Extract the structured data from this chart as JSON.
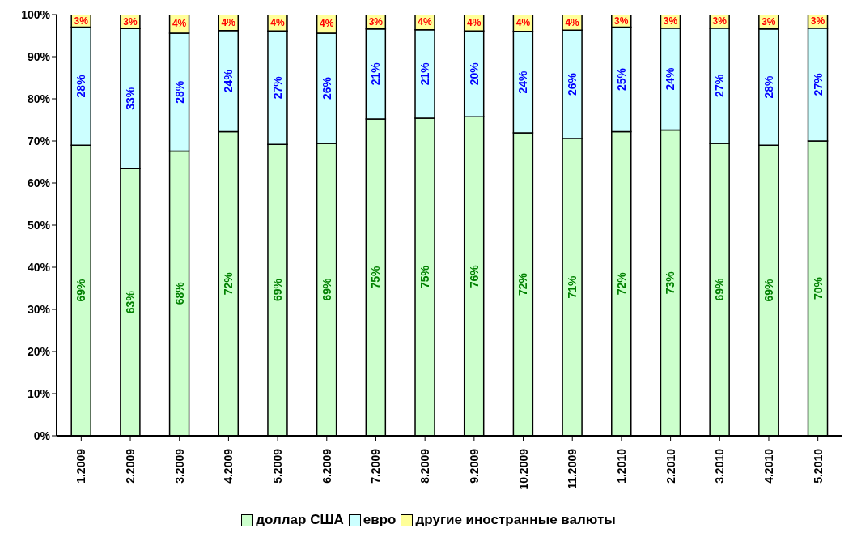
{
  "chart_data": {
    "type": "bar",
    "stacked": true,
    "categories": [
      "1.2009",
      "2.2009",
      "3.2009",
      "4.2009",
      "5.2009",
      "6.2009",
      "7.2009",
      "8.2009",
      "9.2009",
      "10.2009",
      "11.2009",
      "1.2010",
      "2.2010",
      "3.2010",
      "4.2010",
      "5.2010"
    ],
    "series": [
      {
        "name": "доллар США",
        "color": "#ccffcc",
        "values": [
          69.0,
          63.4,
          67.6,
          72.2,
          69.2,
          69.4,
          75.2,
          75.4,
          75.7,
          71.9,
          70.6,
          72.2,
          72.6,
          69.4,
          69.0,
          70.0
        ],
        "value_labels": [
          "69%",
          "63%",
          "68%",
          "72%",
          "69%",
          "69%",
          "75%",
          "75%",
          "76%",
          "72%",
          "71%",
          "72%",
          "73%",
          "69%",
          "69%",
          "70%"
        ]
      },
      {
        "name": "евро",
        "color": "#ccffff",
        "values": [
          28.0,
          33.3,
          28.0,
          24.0,
          26.9,
          26.2,
          21.4,
          21.0,
          20.4,
          24.1,
          25.7,
          24.8,
          24.2,
          27.4,
          27.6,
          26.8
        ],
        "value_labels": [
          "28%",
          "33%",
          "28%",
          "24%",
          "27%",
          "26%",
          "21%",
          "21%",
          "20%",
          "24%",
          "26%",
          "25%",
          "24%",
          "27%",
          "28%",
          "27%"
        ]
      },
      {
        "name": "другие иностранные валюты",
        "color": "#ffff99",
        "values": [
          3.0,
          3.3,
          4.4,
          3.8,
          3.9,
          4.4,
          3.4,
          3.6,
          3.9,
          4.0,
          3.7,
          3.0,
          3.2,
          3.2,
          3.4,
          3.2
        ],
        "value_labels": [
          "3%",
          "3%",
          "4%",
          "4%",
          "4%",
          "4%",
          "3%",
          "4%",
          "4%",
          "4%",
          "4%",
          "3%",
          "3%",
          "3%",
          "3%",
          "3%"
        ]
      }
    ],
    "ylim": [
      0,
      100
    ],
    "yticks": [
      {
        "value": 0,
        "label": "0%"
      },
      {
        "value": 10,
        "label": "10%"
      },
      {
        "value": 20,
        "label": "20%"
      },
      {
        "value": 30,
        "label": "30%"
      },
      {
        "value": 40,
        "label": "40%"
      },
      {
        "value": 50,
        "label": "50%"
      },
      {
        "value": 60,
        "label": "60%"
      },
      {
        "value": 70,
        "label": "70%"
      },
      {
        "value": 80,
        "label": "80%"
      },
      {
        "value": 90,
        "label": "90%"
      },
      {
        "value": 100,
        "label": "100%"
      }
    ],
    "grid": false,
    "legend": "bottom"
  }
}
